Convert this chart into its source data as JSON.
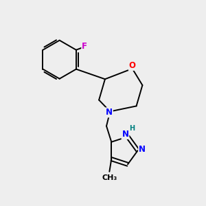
{
  "background_color": "#eeeeee",
  "bond_color": "#000000",
  "atom_colors": {
    "O": "#ff0000",
    "N": "#0000ff",
    "F": "#cc00cc",
    "C": "#000000",
    "H": "#008080"
  },
  "font_size_atom": 8.5,
  "font_size_small": 7.0,
  "lw": 1.4
}
